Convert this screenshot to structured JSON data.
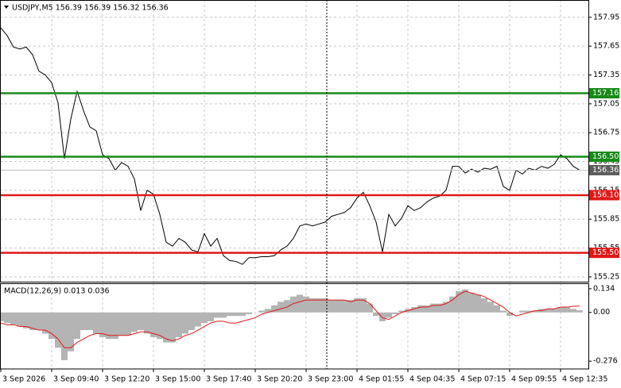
{
  "chart_data": [
    {
      "type": "line",
      "title": "USDJPY,M5  156.39 156.39 156.32 156.36",
      "color": "#000000",
      "categories": [
        "3 Sep 2026",
        null,
        null,
        null,
        null,
        null,
        null,
        null,
        "3 Sep 09:40",
        null,
        null,
        null,
        null,
        null,
        null,
        null,
        "3 Sep 12:20",
        null,
        null,
        null,
        null,
        null,
        null,
        null,
        "3 Sep 15:00",
        null,
        null,
        null,
        null,
        null,
        null,
        null,
        "3 Sep 17:40",
        null,
        null,
        null,
        null,
        null,
        null,
        null,
        "3 Sep 20:20",
        null,
        null,
        null,
        null,
        null,
        null,
        null,
        "3 Sep 23:00",
        null,
        null,
        null,
        null,
        null,
        null,
        null,
        "4 Sep 01:55",
        null,
        null,
        null,
        null,
        null,
        null,
        null,
        "4 Sep 04:35",
        null,
        null,
        null,
        null,
        null,
        null,
        null,
        "4 Sep 07:15",
        null,
        null,
        null,
        null,
        null,
        null,
        null,
        "4 Sep 09:55",
        null,
        null,
        null,
        null,
        null,
        null,
        null,
        "4 Sep 12:35",
        null,
        null,
        null
      ],
      "values": [
        157.84,
        157.76,
        157.64,
        157.62,
        157.64,
        157.56,
        157.39,
        157.35,
        157.27,
        157.06,
        156.48,
        156.89,
        157.18,
        156.98,
        156.81,
        156.77,
        156.52,
        156.48,
        156.36,
        156.44,
        156.4,
        156.27,
        155.94,
        156.15,
        156.11,
        155.9,
        155.61,
        155.57,
        155.65,
        155.61,
        155.53,
        155.51,
        155.7,
        155.57,
        155.65,
        155.47,
        155.42,
        155.41,
        155.38,
        155.45,
        155.45,
        155.46,
        155.46,
        155.47,
        155.53,
        155.57,
        155.65,
        155.78,
        155.8,
        155.78,
        155.8,
        155.82,
        155.88,
        155.9,
        155.92,
        155.97,
        156.07,
        156.13,
        155.99,
        155.82,
        155.51,
        155.9,
        155.78,
        155.86,
        155.99,
        155.94,
        155.97,
        156.03,
        156.07,
        156.09,
        156.15,
        156.4,
        156.4,
        156.33,
        156.37,
        156.34,
        156.38,
        156.37,
        156.4,
        156.19,
        156.15,
        156.36,
        156.32,
        156.38,
        156.36,
        156.4,
        156.38,
        156.42,
        156.52,
        156.48,
        156.4,
        156.36
      ],
      "ylim": [
        155.2,
        158.13
      ],
      "yticks": [
        157.95,
        157.65,
        157.35,
        157.05,
        156.75,
        156.45,
        156.15,
        155.85,
        155.55,
        155.25
      ],
      "grid": true,
      "levels": [
        {
          "value": 157.16,
          "color": "#178a17"
        },
        {
          "value": 156.5,
          "label": "156.50",
          "color": "#178a17"
        },
        {
          "value": 156.1,
          "label": "156.10",
          "color": "#e01818"
        },
        {
          "value": 155.5,
          "label": "155.50",
          "color": "#e01818"
        }
      ],
      "last_price": 156.36,
      "last_price_color": "#5c5c5c"
    },
    {
      "type": "macd",
      "title": "MACD(12,26,9) 0.013 0.036",
      "histogram": {
        "color": "#b4b4b4",
        "values": [
          -0.05,
          -0.06,
          -0.07,
          -0.08,
          -0.09,
          -0.1,
          -0.1,
          -0.12,
          -0.15,
          -0.2,
          -0.27,
          -0.22,
          -0.15,
          -0.1,
          -0.1,
          -0.12,
          -0.14,
          -0.15,
          -0.15,
          -0.13,
          -0.13,
          -0.11,
          -0.1,
          -0.12,
          -0.14,
          -0.15,
          -0.17,
          -0.17,
          -0.14,
          -0.12,
          -0.1,
          -0.08,
          -0.06,
          -0.05,
          -0.03,
          -0.03,
          -0.02,
          -0.02,
          -0.02,
          -0.01,
          0,
          0.01,
          0.02,
          0.04,
          0.06,
          0.07,
          0.09,
          0.1,
          0.09,
          0.08,
          0.08,
          0.08,
          0.07,
          0.07,
          0.07,
          0.07,
          0.08,
          0.08,
          0.05,
          -0.02,
          -0.05,
          -0.03,
          -0.01,
          0.01,
          0.02,
          0.03,
          0.04,
          0.04,
          0.05,
          0.05,
          0.06,
          0.09,
          0.12,
          0.13,
          0.11,
          0.1,
          0.08,
          0.06,
          0.04,
          0.01,
          -0.02,
          0,
          0.01,
          0.01,
          0.01,
          0.02,
          0.02,
          0.02,
          0.03,
          0.03,
          0.02,
          0.013
        ]
      },
      "signal": {
        "color": "#e01818",
        "values": [
          -0.06,
          -0.07,
          -0.07,
          -0.08,
          -0.08,
          -0.09,
          -0.1,
          -0.1,
          -0.12,
          -0.15,
          -0.2,
          -0.2,
          -0.17,
          -0.15,
          -0.13,
          -0.12,
          -0.12,
          -0.13,
          -0.13,
          -0.13,
          -0.13,
          -0.12,
          -0.11,
          -0.11,
          -0.12,
          -0.13,
          -0.15,
          -0.16,
          -0.15,
          -0.13,
          -0.12,
          -0.1,
          -0.08,
          -0.06,
          -0.05,
          -0.05,
          -0.06,
          -0.06,
          -0.05,
          -0.04,
          -0.03,
          -0.01,
          0,
          0.01,
          0.02,
          0.03,
          0.05,
          0.06,
          0.07,
          0.07,
          0.07,
          0.07,
          0.07,
          0.07,
          0.07,
          0.06,
          0.07,
          0.07,
          0.05,
          0.01,
          -0.03,
          -0.04,
          -0.02,
          0,
          0.01,
          0.02,
          0.03,
          0.03,
          0.04,
          0.04,
          0.05,
          0.07,
          0.1,
          0.12,
          0.11,
          0.1,
          0.09,
          0.07,
          0.05,
          0.03,
          0,
          -0.02,
          -0.01,
          0,
          0.01,
          0.01,
          0.02,
          0.02,
          0.03,
          0.03,
          0.035,
          0.036
        ]
      },
      "ylim": [
        -0.32,
        0.165
      ],
      "yticks": [
        0.134,
        {
          "value": 0,
          "label": "0.00"
        },
        -0.276
      ]
    }
  ]
}
